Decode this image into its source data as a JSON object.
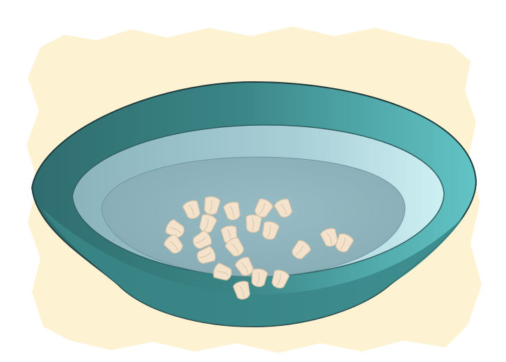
{
  "illustration": {
    "subject": "bowl-of-water-with-seeds",
    "seed_count": 22,
    "colors": {
      "backdrop": "#fdf3d3",
      "bowl_outer_dark": "#2f6d70",
      "bowl_outer_mid": "#3f8f90",
      "bowl_outer_light": "#63c3c4",
      "bowl_rim": "#4e9fa2",
      "bowl_inner_wall": "#9fc5cc",
      "bowl_inner_light": "#c9ecf0",
      "water": "#8fb4bd",
      "seed_fill": "#f3e3cc",
      "seed_shade": "#d9c3a6",
      "outline": "#1f3a3c"
    }
  }
}
